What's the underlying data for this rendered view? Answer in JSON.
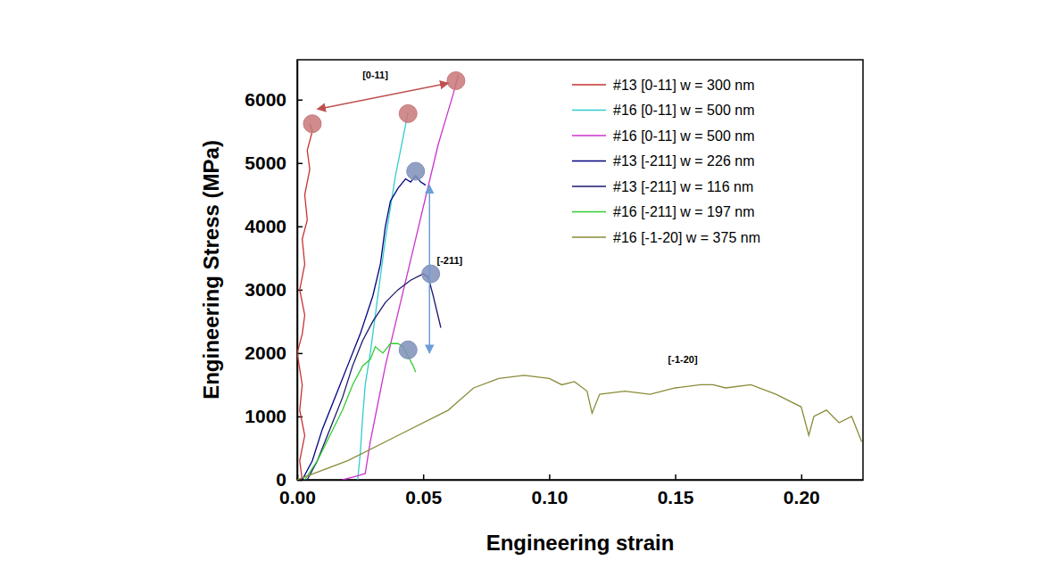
{
  "chart_data": {
    "type": "line",
    "x_label": "Engineering strain",
    "y_label": "Engineering Stress (MPa)",
    "xlim": [
      0,
      0.2245
    ],
    "ylim": [
      0,
      6630
    ],
    "xticks": [
      {
        "value": 0,
        "label": "0.00"
      },
      {
        "value": 0.05,
        "label": "0.05"
      },
      {
        "value": 0.1,
        "label": "0.10"
      },
      {
        "value": 0.15,
        "label": "0.15"
      },
      {
        "value": 0.2,
        "label": "0.20"
      }
    ],
    "yticks": [
      0,
      1000,
      2000,
      3000,
      4000,
      5000,
      6000
    ],
    "legend": "upper right",
    "series": [
      {
        "name": "#13 [0-11] w = 300 nm",
        "color": "#c83232",
        "x": [
          0.002,
          0.001,
          0.003,
          0.001,
          0.002,
          0.0,
          0.002,
          0.003,
          0.001,
          0.003,
          0.002,
          0.004,
          0.003,
          0.005,
          0.004,
          0.006,
          0.005
        ],
        "values": [
          0,
          300,
          700,
          1100,
          1500,
          2000,
          2300,
          2600,
          3000,
          3400,
          3800,
          4100,
          4500,
          4900,
          5200,
          5500,
          5620
        ]
      },
      {
        "name": "#16 [0-11] w = 500 nm",
        "color": "#33cccc",
        "x": [
          0.024,
          0.025,
          0.026,
          0.027,
          0.029,
          0.031,
          0.033,
          0.035,
          0.037,
          0.039,
          0.041,
          0.043,
          0.044
        ],
        "values": [
          0,
          400,
          1000,
          1500,
          2000,
          2600,
          3200,
          3800,
          4300,
          4800,
          5200,
          5600,
          5800
        ]
      },
      {
        "name": "#16 [0-11] w = 500 nm",
        "color": "#cc33cc",
        "x": [
          0.018,
          0.023,
          0.027,
          0.029,
          0.032,
          0.035,
          0.038,
          0.041,
          0.044,
          0.047,
          0.05,
          0.053,
          0.056,
          0.059,
          0.062,
          0.064
        ],
        "values": [
          0,
          50,
          100,
          600,
          1200,
          1800,
          2300,
          2800,
          3300,
          3800,
          4300,
          4800,
          5300,
          5700,
          6100,
          6400
        ]
      },
      {
        "name": "#13 [-211] w = 226 nm",
        "color": "#000080",
        "x": [
          0.002,
          0.006,
          0.01,
          0.015,
          0.02,
          0.025,
          0.03,
          0.033,
          0.035,
          0.037,
          0.04,
          0.043,
          0.045,
          0.047,
          0.049,
          0.051
        ],
        "values": [
          0,
          300,
          800,
          1300,
          1800,
          2300,
          2900,
          3400,
          4000,
          4400,
          4600,
          4750,
          4700,
          4800,
          4700,
          4650
        ]
      },
      {
        "name": "#13 [-211] w = 116 nm",
        "color": "#1a1a6e",
        "x": [
          0.004,
          0.008,
          0.013,
          0.018,
          0.022,
          0.026,
          0.03,
          0.035,
          0.04,
          0.045,
          0.05,
          0.052,
          0.054,
          0.057
        ],
        "values": [
          0,
          300,
          800,
          1300,
          1800,
          2200,
          2500,
          2800,
          3000,
          3150,
          3250,
          3200,
          2900,
          2400
        ]
      },
      {
        "name": "#16 [-211] w = 197 nm",
        "color": "#33cc33",
        "x": [
          0.003,
          0.008,
          0.013,
          0.018,
          0.022,
          0.026,
          0.029,
          0.031,
          0.034,
          0.037,
          0.04,
          0.042,
          0.044,
          0.046,
          0.047
        ],
        "values": [
          0,
          300,
          700,
          1100,
          1500,
          1800,
          1900,
          2100,
          2000,
          2150,
          2150,
          2100,
          1950,
          1800,
          1700
        ]
      },
      {
        "name": "#16 [-1-20] w = 375 nm",
        "color": "#8b8b3a",
        "x": [
          0,
          0.02,
          0.04,
          0.06,
          0.07,
          0.08,
          0.09,
          0.1,
          0.105,
          0.11,
          0.115,
          0.117,
          0.12,
          0.13,
          0.14,
          0.15,
          0.16,
          0.165,
          0.17,
          0.18,
          0.19,
          0.2,
          0.203,
          0.205,
          0.21,
          0.215,
          0.22,
          0.223,
          0.224
        ],
        "values": [
          0,
          300,
          700,
          1100,
          1450,
          1600,
          1650,
          1600,
          1500,
          1550,
          1400,
          1050,
          1350,
          1400,
          1350,
          1450,
          1500,
          1500,
          1450,
          1500,
          1350,
          1150,
          700,
          1000,
          1100,
          900,
          1000,
          700,
          600
        ]
      }
    ],
    "markers": [
      {
        "x": 0.006,
        "y": 5620,
        "color": "#c87878"
      },
      {
        "x": 0.044,
        "y": 5780,
        "color": "#c87878"
      },
      {
        "x": 0.063,
        "y": 6300,
        "color": "#c87878"
      },
      {
        "x": 0.047,
        "y": 4870,
        "color": "#7f8fb8"
      },
      {
        "x": 0.053,
        "y": 3250,
        "color": "#7f8fb8"
      },
      {
        "x": 0.044,
        "y": 2050,
        "color": "#7f8fb8"
      }
    ],
    "annotations": [
      {
        "text": "[0-11]",
        "x": 0.031,
        "y": 6330,
        "color": "#c05050",
        "arrow": [
          [
            0.008,
            5850
          ],
          [
            0.06,
            6260
          ]
        ]
      },
      {
        "text": "[-211]",
        "x": 0.0605,
        "y": 3400,
        "color": "#6a9fd8",
        "arrow": [
          [
            0.0525,
            4650
          ],
          [
            0.0525,
            2000
          ]
        ]
      },
      {
        "text": "[-1-20]",
        "x": 0.153,
        "y": 1850
      }
    ]
  }
}
